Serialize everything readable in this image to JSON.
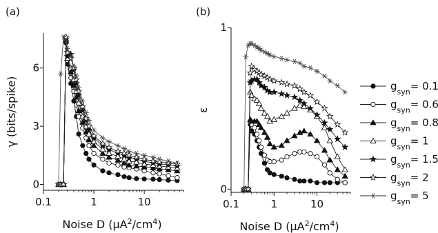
{
  "legend_title": "g",
  "legend_sub": "syn",
  "chart_data": [
    {
      "panel": "(a)",
      "type": "line",
      "x_scale": "log",
      "xlim": [
        0.1,
        60
      ],
      "ylim": [
        -0.3,
        7.8
      ],
      "xlabel": "Noise D (μA²/cm⁴)",
      "xlabel_main": "Noise D (μA",
      "xlabel_sup1": "2",
      "xlabel_mid": "/cm",
      "xlabel_sup2": "4",
      "xlabel_end": ")",
      "ylabel": "γ (bits/spike)",
      "xticks": [
        {
          "v": 0.1,
          "label": "0.1"
        },
        {
          "v": 1,
          "label": "1"
        },
        {
          "v": 10,
          "label": "10"
        }
      ],
      "yticks": [
        {
          "v": 0,
          "label": "0"
        },
        {
          "v": 3,
          "label": "3"
        },
        {
          "v": 6,
          "label": "6"
        }
      ],
      "x": [
        0.2,
        0.22,
        0.25,
        0.28,
        0.3,
        0.35,
        0.4,
        0.45,
        0.5,
        0.6,
        0.7,
        0.8,
        1,
        1.5,
        2,
        3,
        4,
        5,
        7,
        10,
        15,
        20,
        30,
        45
      ],
      "series": [
        {
          "label": "0.1",
          "marker": "circle-filled",
          "values": [
            0,
            0,
            0,
            7.3,
            6.2,
            5.2,
            4.3,
            3.5,
            2.6,
            2.0,
            1.6,
            1.3,
            1.0,
            0.7,
            0.6,
            0.5,
            0.4,
            0.35,
            0.3,
            0.28,
            0.27,
            0.25,
            0.22,
            0.2
          ]
        },
        {
          "label": "0.6",
          "marker": "circle-open",
          "values": [
            0,
            0,
            0,
            7.4,
            6.4,
            5.5,
            4.8,
            4.1,
            3.5,
            2.9,
            2.4,
            2.0,
            1.6,
            1.3,
            1.1,
            1.0,
            0.9,
            0.85,
            0.8,
            0.7,
            0.6,
            0.55,
            0.45,
            0.35
          ]
        },
        {
          "label": "0.8",
          "marker": "triangle-filled",
          "values": [
            0,
            0,
            0,
            7.4,
            6.5,
            5.8,
            5.1,
            4.5,
            3.8,
            3.2,
            2.7,
            2.3,
            2.0,
            1.6,
            1.4,
            1.25,
            1.1,
            1.0,
            0.95,
            0.9,
            0.85,
            0.8,
            0.75,
            0.7
          ]
        },
        {
          "label": "1",
          "marker": "triangle-open",
          "values": [
            0,
            0,
            0,
            7.5,
            6.5,
            6.0,
            5.4,
            4.8,
            4.2,
            3.5,
            3.0,
            2.6,
            2.2,
            1.8,
            1.6,
            1.45,
            1.3,
            1.2,
            1.15,
            1.05,
            1.0,
            0.95,
            0.9,
            0.85
          ]
        },
        {
          "label": "1.5",
          "marker": "star-filled",
          "values": [
            0,
            0,
            0,
            7.5,
            6.6,
            6.7,
            5.9,
            5.2,
            4.6,
            3.8,
            3.3,
            2.8,
            2.4,
            2.0,
            1.8,
            1.6,
            1.5,
            1.35,
            1.3,
            1.2,
            1.1,
            1.05,
            1.0,
            0.95
          ]
        },
        {
          "label": "2",
          "marker": "star-open",
          "values": [
            0,
            0,
            0,
            7.6,
            6.8,
            6.5,
            6.0,
            5.4,
            4.8,
            4.0,
            3.4,
            3.0,
            2.5,
            2.1,
            1.9,
            1.7,
            1.6,
            1.5,
            1.4,
            1.3,
            1.2,
            1.15,
            1.1,
            1.05
          ]
        },
        {
          "label": "5",
          "marker": "asterisk",
          "values": [
            0,
            5.7,
            7.6,
            7.4,
            7.0,
            6.6,
            6.1,
            5.6,
            5.0,
            4.3,
            3.7,
            3.3,
            2.8,
            2.4,
            2.2,
            2.0,
            1.85,
            1.7,
            1.6,
            1.5,
            1.4,
            1.3,
            1.2,
            1.1
          ]
        }
      ]
    },
    {
      "panel": "(b)",
      "type": "line",
      "x_scale": "log",
      "xlim": [
        0.1,
        60
      ],
      "ylim": [
        -0.02,
        1.0
      ],
      "xlabel": "Noise D (μA²/cm⁴)",
      "xlabel_main": "Noise D (μA",
      "xlabel_sup1": "2",
      "xlabel_mid": "/cm",
      "xlabel_sup2": "4",
      "xlabel_end": ")",
      "ylabel": "ε",
      "xticks": [
        {
          "v": 0.1,
          "label": "0.1"
        },
        {
          "v": 1,
          "label": "1"
        },
        {
          "v": 10,
          "label": "10"
        }
      ],
      "yticks": [
        {
          "v": 0,
          "label": "0"
        },
        {
          "v": 1,
          "label": "1"
        }
      ],
      "x": [
        0.2,
        0.22,
        0.25,
        0.28,
        0.3,
        0.35,
        0.4,
        0.45,
        0.5,
        0.6,
        0.7,
        0.8,
        1,
        1.5,
        2,
        3,
        4,
        5,
        7,
        10,
        15,
        20,
        30,
        45
      ],
      "series": [
        {
          "label": "0.1",
          "marker": "circle-filled",
          "values": [
            0,
            0,
            0,
            0.4,
            0.36,
            0.34,
            0.3,
            0.26,
            0.22,
            0.16,
            0.12,
            0.1,
            0.09,
            0.08,
            0.07,
            0.06,
            0.05,
            0.05,
            0.05,
            0.04,
            0.04,
            0.04,
            0.04,
            0.04
          ]
        },
        {
          "label": "0.6",
          "marker": "circle-open",
          "values": [
            0,
            0,
            0,
            0.42,
            0.4,
            0.38,
            0.34,
            0.3,
            0.26,
            0.21,
            0.18,
            0.17,
            0.17,
            0.18,
            0.2,
            0.22,
            0.23,
            0.23,
            0.22,
            0.2,
            0.15,
            0.1,
            0.06,
            0.04
          ]
        },
        {
          "label": "0.8",
          "marker": "triangle-filled",
          "values": [
            0,
            0,
            0,
            0.43,
            0.42,
            0.42,
            0.42,
            0.4,
            0.38,
            0.35,
            0.32,
            0.28,
            0.26,
            0.27,
            0.3,
            0.33,
            0.35,
            0.36,
            0.34,
            0.3,
            0.24,
            0.18,
            0.12,
            0.08
          ]
        },
        {
          "label": "1",
          "marker": "triangle-open",
          "values": [
            0,
            0,
            0,
            0.6,
            0.58,
            0.56,
            0.55,
            0.53,
            0.5,
            0.47,
            0.45,
            0.42,
            0.43,
            0.45,
            0.47,
            0.5,
            0.52,
            0.51,
            0.49,
            0.45,
            0.38,
            0.3,
            0.2,
            0.12
          ]
        },
        {
          "label": "1.5",
          "marker": "star-filled",
          "values": [
            0,
            0,
            0,
            0.66,
            0.67,
            0.68,
            0.68,
            0.66,
            0.64,
            0.63,
            0.61,
            0.6,
            0.6,
            0.59,
            0.58,
            0.57,
            0.55,
            0.53,
            0.5,
            0.46,
            0.41,
            0.37,
            0.31,
            0.26
          ]
        },
        {
          "label": "2",
          "marker": "star-open",
          "values": [
            0,
            0,
            0,
            0.72,
            0.76,
            0.74,
            0.73,
            0.72,
            0.71,
            0.7,
            0.69,
            0.68,
            0.67,
            0.66,
            0.65,
            0.64,
            0.62,
            0.6,
            0.58,
            0.54,
            0.5,
            0.45,
            0.4,
            0.35
          ]
        },
        {
          "label": "5",
          "marker": "asterisk",
          "values": [
            0,
            0.82,
            0.89,
            0.9,
            0.9,
            0.89,
            0.88,
            0.87,
            0.86,
            0.85,
            0.84,
            0.83,
            0.82,
            0.81,
            0.8,
            0.79,
            0.78,
            0.76,
            0.75,
            0.73,
            0.7,
            0.67,
            0.64,
            0.6
          ]
        }
      ]
    }
  ]
}
